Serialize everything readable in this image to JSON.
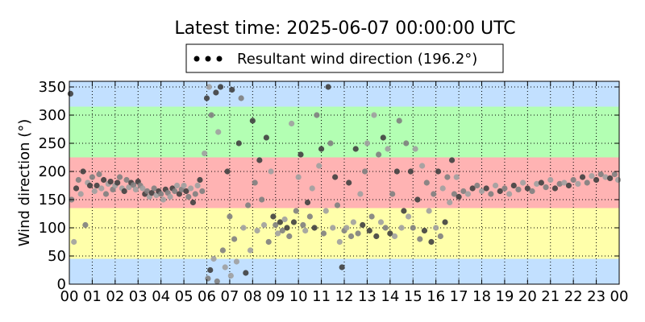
{
  "chart_data": {
    "type": "scatter",
    "title": "Latest time: 2025-06-07 00:00:00 UTC",
    "xlabel": "",
    "ylabel": "Wind direction (°)",
    "xlim": [
      0,
      24
    ],
    "ylim": [
      0,
      360
    ],
    "grid": true,
    "legend": {
      "position": "top-center",
      "label": "Resultant wind direction (196.2°)"
    },
    "x_ticks": [
      "00",
      "01",
      "02",
      "03",
      "04",
      "05",
      "06",
      "07",
      "08",
      "09",
      "10",
      "11",
      "12",
      "13",
      "14",
      "15",
      "16",
      "17",
      "18",
      "19",
      "20",
      "21",
      "22",
      "23",
      "00"
    ],
    "y_ticks": [
      0,
      50,
      100,
      150,
      200,
      250,
      300,
      350
    ],
    "direction_bands": [
      {
        "from": 0,
        "to": 45,
        "color": "#c2e0ff"
      },
      {
        "from": 45,
        "to": 135,
        "color": "#ffffaa"
      },
      {
        "from": 135,
        "to": 225,
        "color": "#ffb3b3"
      },
      {
        "from": 225,
        "to": 315,
        "color": "#b3ffb3"
      },
      {
        "from": 315,
        "to": 360,
        "color": "#c2e0ff"
      }
    ],
    "series": [
      {
        "marker_colors": [
          "#404040",
          "#808080",
          "#a0a0a0"
        ],
        "points": [
          [
            0.05,
            338
          ],
          [
            0.1,
            150
          ],
          [
            0.2,
            75
          ],
          [
            0.3,
            170
          ],
          [
            0.4,
            185
          ],
          [
            0.5,
            160
          ],
          [
            0.6,
            200
          ],
          [
            0.7,
            105
          ],
          [
            0.8,
            180
          ],
          [
            0.9,
            175
          ],
          [
            1.0,
            190
          ],
          [
            1.1,
            165
          ],
          [
            1.2,
            175
          ],
          [
            1.3,
            195
          ],
          [
            1.4,
            170
          ],
          [
            1.5,
            185
          ],
          [
            1.6,
            160
          ],
          [
            1.7,
            178
          ],
          [
            1.8,
            182
          ],
          [
            1.9,
            168
          ],
          [
            2.0,
            175
          ],
          [
            2.1,
            180
          ],
          [
            2.2,
            190
          ],
          [
            2.3,
            170
          ],
          [
            2.4,
            165
          ],
          [
            2.5,
            185
          ],
          [
            2.6,
            172
          ],
          [
            2.7,
            180
          ],
          [
            2.8,
            176
          ],
          [
            2.9,
            168
          ],
          [
            3.0,
            182
          ],
          [
            3.1,
            175
          ],
          [
            3.2,
            170
          ],
          [
            3.3,
            160
          ],
          [
            3.4,
            165
          ],
          [
            3.5,
            155
          ],
          [
            3.6,
            162
          ],
          [
            3.7,
            170
          ],
          [
            3.8,
            158
          ],
          [
            3.9,
            165
          ],
          [
            4.0,
            160
          ],
          [
            4.1,
            150
          ],
          [
            4.2,
            168
          ],
          [
            4.3,
            162
          ],
          [
            4.4,
            155
          ],
          [
            4.5,
            170
          ],
          [
            4.6,
            165
          ],
          [
            4.7,
            175
          ],
          [
            4.8,
            160
          ],
          [
            4.9,
            168
          ],
          [
            5.0,
            175
          ],
          [
            5.1,
            165
          ],
          [
            5.2,
            155
          ],
          [
            5.3,
            170
          ],
          [
            5.4,
            145
          ],
          [
            5.5,
            160
          ],
          [
            5.6,
            175
          ],
          [
            5.7,
            185
          ],
          [
            5.8,
            165
          ],
          [
            5.9,
            232
          ],
          [
            6.0,
            330
          ],
          [
            6.05,
            10
          ],
          [
            6.1,
            350
          ],
          [
            6.15,
            25
          ],
          [
            6.2,
            300
          ],
          [
            6.3,
            45
          ],
          [
            6.4,
            340
          ],
          [
            6.45,
            5
          ],
          [
            6.5,
            270
          ],
          [
            6.6,
            350
          ],
          [
            6.7,
            60
          ],
          [
            6.8,
            30
          ],
          [
            6.9,
            200
          ],
          [
            7.0,
            120
          ],
          [
            7.05,
            15
          ],
          [
            7.1,
            345
          ],
          [
            7.2,
            80
          ],
          [
            7.3,
            40
          ],
          [
            7.4,
            250
          ],
          [
            7.5,
            330
          ],
          [
            7.6,
            100
          ],
          [
            7.7,
            20
          ],
          [
            7.8,
            140
          ],
          [
            7.9,
            60
          ],
          [
            8.0,
            290
          ],
          [
            8.1,
            180
          ],
          [
            8.2,
            95
          ],
          [
            8.3,
            220
          ],
          [
            8.4,
            150
          ],
          [
            8.5,
            105
          ],
          [
            8.6,
            260
          ],
          [
            8.7,
            75
          ],
          [
            8.8,
            200
          ],
          [
            8.9,
            120
          ],
          [
            9.0,
            105
          ],
          [
            9.1,
            90
          ],
          [
            9.2,
            110
          ],
          [
            9.3,
            95
          ],
          [
            9.4,
            115
          ],
          [
            9.5,
            100
          ],
          [
            9.6,
            85
          ],
          [
            9.7,
            285
          ],
          [
            9.8,
            110
          ],
          [
            9.9,
            130
          ],
          [
            10.0,
            190
          ],
          [
            10.1,
            230
          ],
          [
            10.2,
            105
          ],
          [
            10.3,
            95
          ],
          [
            10.4,
            145
          ],
          [
            10.5,
            120
          ],
          [
            10.6,
            170
          ],
          [
            10.7,
            100
          ],
          [
            10.8,
            300
          ],
          [
            10.9,
            210
          ],
          [
            11.0,
            240
          ],
          [
            11.1,
            90
          ],
          [
            11.2,
            130
          ],
          [
            11.3,
            350
          ],
          [
            11.4,
            250
          ],
          [
            11.5,
            100
          ],
          [
            11.6,
            190
          ],
          [
            11.7,
            140
          ],
          [
            11.8,
            75
          ],
          [
            11.9,
            30
          ],
          [
            12.0,
            95
          ],
          [
            12.1,
            100
          ],
          [
            12.2,
            180
          ],
          [
            12.3,
            85
          ],
          [
            12.4,
            110
          ],
          [
            12.5,
            240
          ],
          [
            12.6,
            90
          ],
          [
            12.7,
            160
          ],
          [
            12.8,
            105
          ],
          [
            12.9,
            200
          ],
          [
            13.0,
            250
          ],
          [
            13.1,
            95
          ],
          [
            13.2,
            120
          ],
          [
            13.3,
            300
          ],
          [
            13.4,
            85
          ],
          [
            13.5,
            230
          ],
          [
            13.6,
            110
          ],
          [
            13.7,
            260
          ],
          [
            13.8,
            100
          ],
          [
            13.9,
            240
          ],
          [
            14.0,
            90
          ],
          [
            14.1,
            160
          ],
          [
            14.2,
            85
          ],
          [
            14.3,
            200
          ],
          [
            14.4,
            290
          ],
          [
            14.5,
            100
          ],
          [
            14.6,
            130
          ],
          [
            14.7,
            250
          ],
          [
            14.8,
            120
          ],
          [
            14.9,
            200
          ],
          [
            15.0,
            100
          ],
          [
            15.1,
            240
          ],
          [
            15.2,
            150
          ],
          [
            15.3,
            80
          ],
          [
            15.4,
            210
          ],
          [
            15.5,
            95
          ],
          [
            15.6,
            180
          ],
          [
            15.7,
            130
          ],
          [
            15.8,
            75
          ],
          [
            15.9,
            160
          ],
          [
            16.0,
            100
          ],
          [
            16.1,
            200
          ],
          [
            16.2,
            85
          ],
          [
            16.3,
            170
          ],
          [
            16.4,
            110
          ],
          [
            16.5,
            190
          ],
          [
            16.6,
            145
          ],
          [
            16.7,
            220
          ],
          [
            16.8,
            160
          ],
          [
            16.9,
            190
          ],
          [
            17.0,
            155
          ],
          [
            17.2,
            165
          ],
          [
            17.4,
            160
          ],
          [
            17.6,
            170
          ],
          [
            17.8,
            175
          ],
          [
            18.0,
            165
          ],
          [
            18.2,
            170
          ],
          [
            18.4,
            160
          ],
          [
            18.6,
            175
          ],
          [
            18.8,
            165
          ],
          [
            19.0,
            170
          ],
          [
            19.2,
            160
          ],
          [
            19.4,
            175
          ],
          [
            19.6,
            168
          ],
          [
            19.8,
            180
          ],
          [
            20.0,
            170
          ],
          [
            20.2,
            165
          ],
          [
            20.4,
            178
          ],
          [
            20.6,
            180
          ],
          [
            20.8,
            172
          ],
          [
            21.0,
            185
          ],
          [
            21.2,
            170
          ],
          [
            21.4,
            178
          ],
          [
            21.6,
            180
          ],
          [
            21.8,
            175
          ],
          [
            22.0,
            185
          ],
          [
            22.2,
            178
          ],
          [
            22.4,
            190
          ],
          [
            22.6,
            180
          ],
          [
            22.8,
            192
          ],
          [
            23.0,
            185
          ],
          [
            23.2,
            195
          ],
          [
            23.4,
            190
          ],
          [
            23.6,
            188
          ],
          [
            23.8,
            195
          ],
          [
            23.95,
            185
          ]
        ]
      }
    ]
  }
}
